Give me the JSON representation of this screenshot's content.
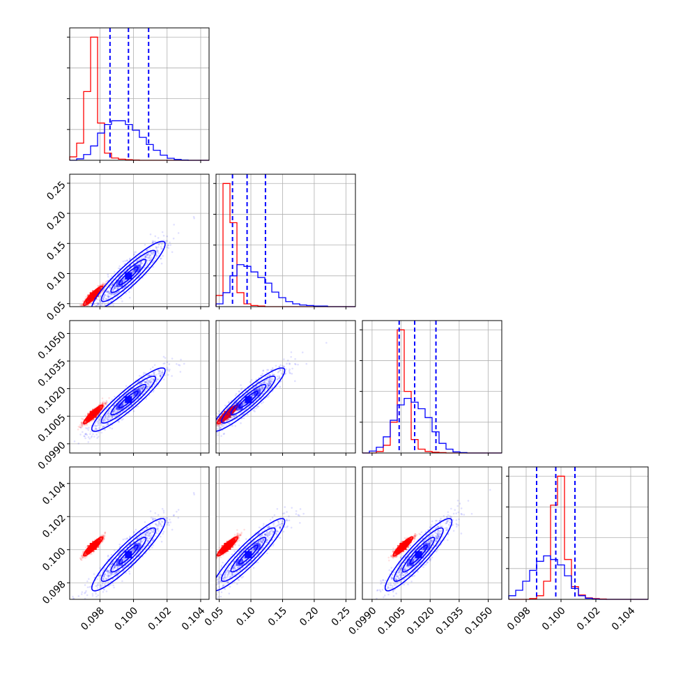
{
  "chart_data": {
    "type": "corner",
    "title": "",
    "grid": true,
    "colors": {
      "series_a": "#ff0000",
      "series_b": "#0000ff",
      "grid": "#b0b0b0",
      "axes": "#000000"
    },
    "series": [
      {
        "color": "#ff0000"
      },
      {
        "color": "#0000ff"
      }
    ],
    "parameters": [
      {
        "range": [
          0.0962,
          0.1045
        ],
        "tick_labels": [
          "0.098",
          "0.100",
          "0.102",
          "0.104"
        ],
        "tick_values": [
          0.098,
          0.1,
          0.102,
          0.104
        ],
        "quantile_lines": [
          0.0986,
          0.0997,
          0.1009
        ]
      },
      {
        "range": [
          0.045,
          0.265
        ],
        "tick_labels": [
          "0.05",
          "0.10",
          "0.15",
          "0.20",
          "0.25"
        ],
        "tick_values": [
          0.05,
          0.1,
          0.15,
          0.2,
          0.25
        ],
        "quantile_lines": [
          0.071,
          0.094,
          0.123
        ]
      },
      {
        "range": [
          0.0985,
          0.1057
        ],
        "tick_labels": [
          "0.0990",
          "0.1005",
          "0.1020",
          "0.1035",
          "0.1050"
        ],
        "tick_values": [
          0.099,
          0.1005,
          0.102,
          0.1035,
          0.105
        ],
        "quantile_lines": [
          0.1004,
          0.1012,
          0.1023
        ]
      },
      {
        "range": [
          0.097,
          0.105
        ],
        "tick_labels": [
          "0.098",
          "0.100",
          "0.102",
          "0.104"
        ],
        "tick_values": [
          0.098,
          0.1,
          0.102,
          0.104
        ],
        "quantile_lines": [
          0.0986,
          0.0997,
          0.1008
        ]
      }
    ],
    "histograms": [
      {
        "param": 0,
        "series": [
          {
            "color": "#ff0000",
            "edges_start": 0.0962,
            "edges_step": 0.000415,
            "counts": [
              0.12,
              0.6,
              2.4,
              4.3,
              1.3,
              0.25,
              0.08,
              0.04,
              0.02,
              0.01,
              0,
              0,
              0,
              0,
              0,
              0,
              0,
              0,
              0,
              0
            ]
          },
          {
            "color": "#0000ff",
            "edges_start": 0.0962,
            "edges_step": 0.000415,
            "counts": [
              0,
              0.05,
              0.2,
              0.5,
              0.95,
              1.25,
              1.38,
              1.38,
              1.25,
              1.05,
              0.8,
              0.55,
              0.35,
              0.18,
              0.07,
              0.03,
              0.01,
              0,
              0,
              0
            ]
          }
        ]
      },
      {
        "param": 1,
        "series": [
          {
            "color": "#ff0000",
            "edges_start": 0.045,
            "edges_step": 0.011,
            "counts": [
              0.2,
              2.2,
              1.5,
              0.25,
              0.05,
              0.02,
              0.01,
              0,
              0,
              0,
              0,
              0,
              0,
              0,
              0,
              0,
              0,
              0,
              0,
              0
            ]
          },
          {
            "color": "#0000ff",
            "edges_start": 0.045,
            "edges_step": 0.011,
            "counts": [
              0.05,
              0.25,
              0.55,
              0.75,
              0.72,
              0.62,
              0.52,
              0.42,
              0.26,
              0.16,
              0.09,
              0.05,
              0.03,
              0.02,
              0.01,
              0.01,
              0,
              0,
              0,
              0
            ]
          }
        ]
      },
      {
        "param": 2,
        "series": [
          {
            "color": "#ff0000",
            "edges_start": 0.0985,
            "edges_step": 0.00036,
            "counts": [
              0,
              0,
              0.04,
              0.2,
              0.8,
              3.2,
              1.6,
              0.35,
              0.1,
              0.04,
              0.02,
              0.01,
              0,
              0,
              0,
              0,
              0,
              0,
              0,
              0
            ]
          },
          {
            "color": "#0000ff",
            "edges_start": 0.0985,
            "edges_step": 0.00036,
            "counts": [
              0,
              0.05,
              0.15,
              0.42,
              0.85,
              1.25,
              1.42,
              1.32,
              1.15,
              0.92,
              0.55,
              0.25,
              0.1,
              0.03,
              0.01,
              0,
              0,
              0,
              0,
              0
            ]
          }
        ]
      },
      {
        "param": 3,
        "series": [
          {
            "color": "#ff0000",
            "edges_start": 0.097,
            "edges_step": 0.0004,
            "counts": [
              0,
              0,
              0,
              0.02,
              0.1,
              0.5,
              2.6,
              3.4,
              1.1,
              0.35,
              0.12,
              0.04,
              0.02,
              0.01,
              0,
              0,
              0,
              0,
              0,
              0
            ]
          },
          {
            "color": "#0000ff",
            "edges_start": 0.097,
            "edges_step": 0.0004,
            "counts": [
              0.1,
              0.25,
              0.5,
              0.8,
              1.05,
              1.2,
              1.1,
              0.95,
              0.65,
              0.3,
              0.1,
              0.03,
              0.01,
              0,
              0,
              0,
              0,
              0,
              0,
              0
            ]
          }
        ]
      }
    ],
    "pair_distributions": [
      {
        "series": "red",
        "mean": [
          0.0976,
          0.063,
          0.1006,
          0.1002
        ],
        "sd": [
          0.00025,
          0.007,
          0.00022,
          0.00025
        ]
      },
      {
        "series": "blue",
        "mean": [
          0.0997,
          0.096,
          0.1014,
          0.0997
        ],
        "sd": [
          0.00095,
          0.025,
          0.00075,
          0.00095
        ]
      }
    ]
  }
}
